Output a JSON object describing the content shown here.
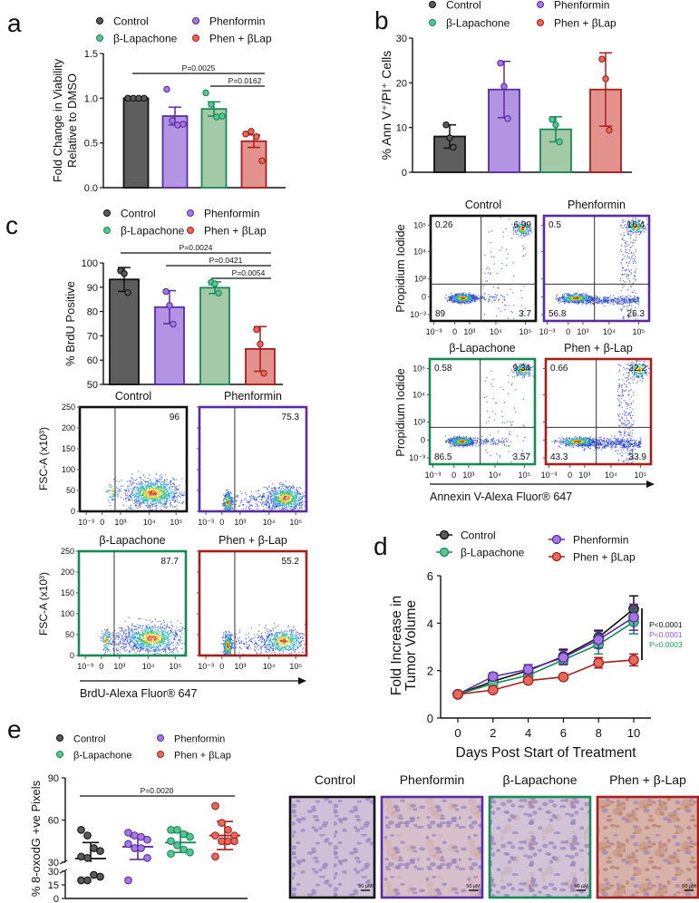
{
  "panel_labels": {
    "a": "a",
    "b": "b",
    "c": "c",
    "d": "d",
    "e": "e"
  },
  "colors": {
    "groups": [
      {
        "name": "Control",
        "fill": "#5e5e5e",
        "stroke": "#111111",
        "dot": "#5a5a5a"
      },
      {
        "name": "Phenformin",
        "fill": "#b394e2",
        "stroke": "#5a2ca0",
        "dot": "#a47ae0"
      },
      {
        "name": "β-Lapachone",
        "fill": "#a3c9a6",
        "stroke": "#178a55",
        "dot": "#58c493"
      },
      {
        "name": "Phen + βLap",
        "fill": "#e3928e",
        "stroke": "#a61f1c",
        "dot": "#e36a5c"
      }
    ],
    "pvalues": [
      "#111111",
      "#9b59d6",
      "#1e9e5a"
    ]
  },
  "chart_data": [
    {
      "panel": "a",
      "type": "bar",
      "title": "",
      "legend": [
        "Control",
        "Phenformin",
        "β-Lapachone",
        "Phen + βLap"
      ],
      "ylabel": [
        "Fold Change in Viability",
        "Relative to DMSO"
      ],
      "xlabel": "",
      "ylim": [
        0,
        1.5
      ],
      "yticks": [
        "0.0",
        "0.5",
        "1.0",
        "1.5"
      ],
      "categories": [
        "Control",
        "Phenformin",
        "β-Lapachone",
        "Phen + βLap"
      ],
      "values": [
        1.0,
        0.8,
        0.88,
        0.52
      ],
      "errors": [
        0,
        0.1,
        0.08,
        0.07
      ],
      "points": [
        [
          1,
          1,
          1,
          1
        ],
        [
          1.1,
          0.75,
          0.7,
          0.71
        ],
        [
          1.06,
          0.93,
          0.79,
          0.8
        ],
        [
          0.6,
          0.63,
          0.57,
          0.3
        ]
      ],
      "comparisons": [
        {
          "from": 0,
          "to": 3,
          "label": "P=0.0025"
        },
        {
          "from": 2,
          "to": 3,
          "label": "P=0.0162"
        }
      ]
    },
    {
      "panel": "b",
      "type": "bar",
      "title": "",
      "legend": [
        "Control",
        "Phenformin",
        "β-Lapachone",
        "Phen + βLap"
      ],
      "ylabel": [
        "% Ann V⁺/PI⁺ Cells"
      ],
      "xlabel": "",
      "ylim": [
        0,
        30
      ],
      "yticks": [
        "0",
        "10",
        "20",
        "30"
      ],
      "categories": [
        "Control",
        "Phenformin",
        "β-Lapachone",
        "Phen + βLap"
      ],
      "values": [
        8.0,
        18.5,
        9.6,
        18.5
      ],
      "errors": [
        2.6,
        6.3,
        2.8,
        8.2
      ],
      "points": [
        [
          10.6,
          7.7,
          5.6
        ],
        [
          24.4,
          19.2,
          12.0
        ],
        [
          11.8,
          10.6,
          6.8
        ],
        [
          25.3,
          20.9,
          9.4
        ]
      ],
      "comparisons": []
    },
    {
      "panel": "c",
      "type": "bar",
      "title": "",
      "legend": [
        "Control",
        "Phenformin",
        "β-Lapachone",
        "Phen + βLap"
      ],
      "ylabel": [
        "% BrdU Positive"
      ],
      "xlabel": "",
      "ylim": [
        50,
        100
      ],
      "yticks": [
        "50",
        "60",
        "70",
        "80",
        "90",
        "100"
      ],
      "categories": [
        "Control",
        "Phenformin",
        "β-Lapachone",
        "Phen + βLap"
      ],
      "values": [
        93.2,
        81.8,
        89.8,
        64.6
      ],
      "errors": [
        4.9,
        6.8,
        2.4,
        9.2
      ],
      "points": [
        [
          96.8,
          95.6,
          87.8
        ],
        [
          88.2,
          82.5,
          74.8
        ],
        [
          92.0,
          91.4,
          87.6
        ],
        [
          72.6,
          66.6,
          54.6
        ]
      ],
      "comparisons": [
        {
          "from": 0,
          "to": 3,
          "label": "P=0.0024"
        },
        {
          "from": 1,
          "to": 3,
          "label": "P=0.0421"
        },
        {
          "from": 2,
          "to": 3,
          "label": "P=0.0054"
        }
      ]
    },
    {
      "panel": "d",
      "type": "line",
      "title": "",
      "legend": [
        "Control",
        "Phenformin",
        "β-Lapachone",
        "Phen + βLap"
      ],
      "xlabel": "Days Post Start of Treatment",
      "ylabel": [
        "Fold Increase in",
        "Tumor Volume"
      ],
      "x": [
        0,
        2,
        4,
        6,
        8,
        10
      ],
      "xticks": [
        "0",
        "2",
        "4",
        "6",
        "8",
        "10"
      ],
      "ylim": [
        0,
        6
      ],
      "yticks": [
        "0",
        "2",
        "4",
        "6"
      ],
      "series": [
        {
          "name": "Control",
          "values": [
            1,
            1.55,
            2.0,
            2.6,
            3.4,
            4.6
          ],
          "errors": [
            0,
            0.12,
            0.15,
            0.3,
            0.3,
            0.55
          ]
        },
        {
          "name": "Phenformin",
          "values": [
            1,
            1.75,
            2.05,
            2.55,
            3.3,
            4.25
          ],
          "errors": [
            0,
            0.15,
            0.2,
            0.3,
            0.35,
            0.55
          ]
        },
        {
          "name": "β-Lapachone",
          "values": [
            1,
            1.45,
            1.8,
            2.45,
            3.1,
            4.05
          ],
          "errors": [
            0,
            0.1,
            0.12,
            0.2,
            0.4,
            0.5
          ]
        },
        {
          "name": "Phen + βLap",
          "values": [
            1,
            1.18,
            1.58,
            1.73,
            2.33,
            2.45
          ],
          "errors": [
            0,
            0.08,
            0.08,
            0.1,
            0.22,
            0.25
          ]
        }
      ],
      "stats": [
        "P<0.0001",
        "P<0.0001",
        "P=0.0003"
      ]
    },
    {
      "panel": "e",
      "type": "scatter",
      "title": "",
      "legend": [
        "Control",
        "Phenformin",
        "β-Lapachone",
        "Phen + βLap"
      ],
      "ylabel": [
        "% 8-oxodG +ve Pixels"
      ],
      "xlabel": "",
      "ylim": [
        0,
        90
      ],
      "yticks_upper": [
        "30",
        "60",
        "90"
      ],
      "yticks_lower": [
        "0",
        "15",
        "30"
      ],
      "categories": [
        "Control",
        "Phenformin",
        "β-Lapachone",
        "Phen + βLap"
      ],
      "points": [
        [
          53,
          49,
          40,
          38,
          34,
          33,
          26,
          24,
          20,
          20
        ],
        [
          51,
          49,
          48,
          46,
          43,
          40,
          40,
          33,
          20
        ],
        [
          53,
          53,
          50,
          48,
          45,
          42,
          39,
          37,
          36
        ],
        [
          70,
          58,
          53,
          49,
          49,
          45,
          45,
          45,
          34
        ]
      ],
      "means": [
        32.6,
        41,
        44,
        49
      ],
      "sd": [
        [
          44,
          21
        ],
        [
          48,
          32
        ],
        [
          51,
          37
        ],
        [
          59,
          39
        ]
      ],
      "comparisons": [
        {
          "from": 0,
          "to": 3,
          "label": "P=0.0020"
        }
      ]
    }
  ],
  "flow_b": {
    "ylabel": "Propidium Iodide",
    "xlabel": "Annexin V-Alexa Fluor® 647",
    "xticks": [
      "10⁻³",
      "0",
      "10³",
      "10⁴",
      "10⁵"
    ],
    "yticks": [
      "10⁵",
      "10⁴",
      "10³",
      "0",
      "10⁻³"
    ],
    "plots": [
      {
        "title": "Control",
        "ul": "0.26",
        "ur": "6.99",
        "ll": "89",
        "lr": "3.7"
      },
      {
        "title": "Phenformin",
        "ul": "0.5",
        "ur": "16.4",
        "ll": "56.8",
        "lr": "26.3"
      },
      {
        "title": "β-Lapachone",
        "ul": "0.58",
        "ur": "9.34",
        "ll": "86.5",
        "lr": "3.57"
      },
      {
        "title": "Phen + β-Lap",
        "ul": "0.66",
        "ur": "22.2",
        "ll": "43.3",
        "lr": "33.9"
      }
    ]
  },
  "flow_c": {
    "ylabel": "FSC-A (x10³)",
    "xlabel": "BrdU-Alexa Fluor® 647",
    "xticks": [
      "10⁻³",
      "0",
      "10³",
      "10⁴",
      "10⁵"
    ],
    "yticks": [
      "0",
      "50",
      "100",
      "150",
      "200",
      "250"
    ],
    "plots": [
      {
        "title": "Control",
        "value": "96"
      },
      {
        "title": "Phenformin",
        "value": "75.3"
      },
      {
        "title": "β-Lapachone",
        "value": "87.7"
      },
      {
        "title": "Phen + β-Lap",
        "value": "55.2"
      }
    ]
  },
  "ihc": {
    "scale_bar": "50 µM",
    "panels": [
      {
        "title": "Control"
      },
      {
        "title": "Phenformin"
      },
      {
        "title": "β-Lapachone"
      },
      {
        "title": "Phen + β-Lap"
      }
    ]
  }
}
